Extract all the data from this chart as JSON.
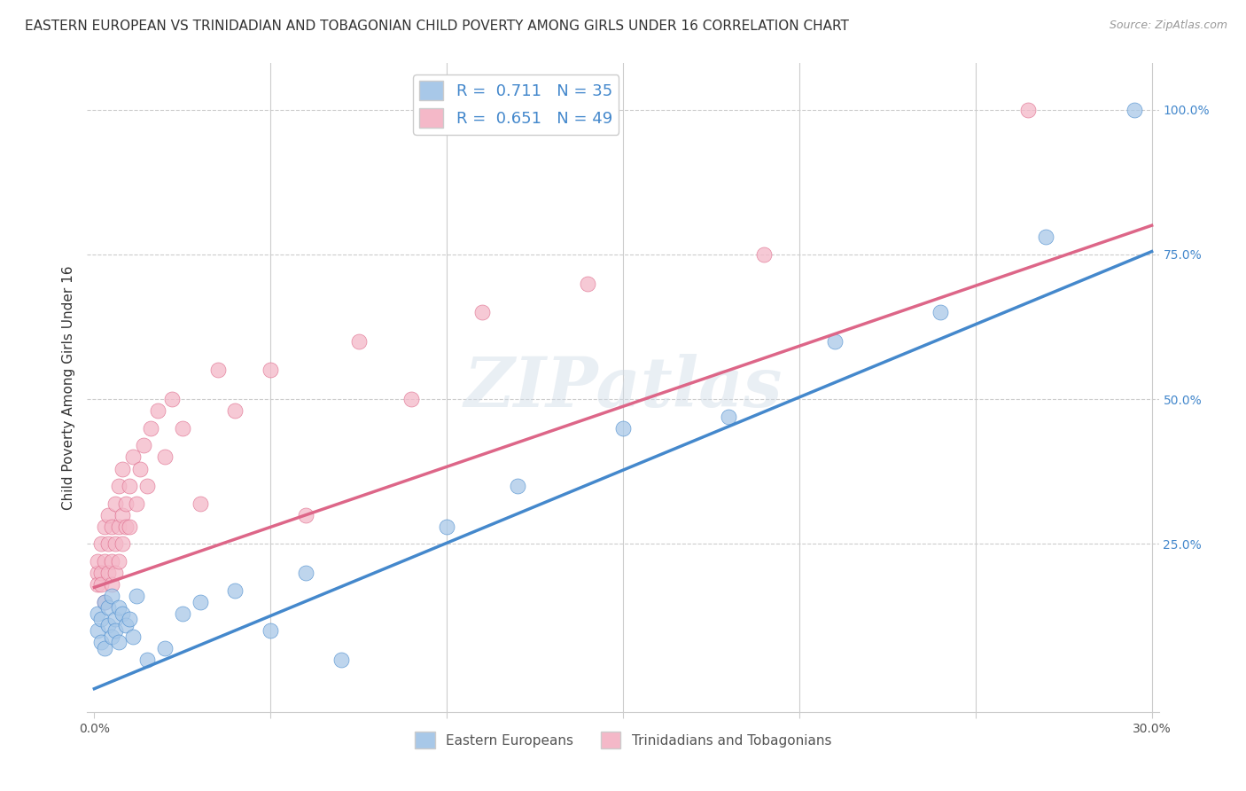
{
  "title": "EASTERN EUROPEAN VS TRINIDADIAN AND TOBAGONIAN CHILD POVERTY AMONG GIRLS UNDER 16 CORRELATION CHART",
  "source": "Source: ZipAtlas.com",
  "ylabel": "Child Poverty Among Girls Under 16",
  "xlim": [
    -0.002,
    0.302
  ],
  "ylim": [
    -0.04,
    1.08
  ],
  "y_ticks_right": [
    0.25,
    0.5,
    0.75,
    1.0
  ],
  "y_tick_labels_right": [
    "25.0%",
    "50.0%",
    "75.0%",
    "100.0%"
  ],
  "blue_R": 0.711,
  "blue_N": 35,
  "pink_R": 0.651,
  "pink_N": 49,
  "blue_color": "#a8c8e8",
  "pink_color": "#f4b8c8",
  "blue_line_color": "#4488cc",
  "pink_line_color": "#dd6688",
  "watermark": "ZIPatlas",
  "blue_scatter_x": [
    0.001,
    0.001,
    0.002,
    0.002,
    0.003,
    0.003,
    0.004,
    0.004,
    0.005,
    0.005,
    0.006,
    0.006,
    0.007,
    0.007,
    0.008,
    0.009,
    0.01,
    0.011,
    0.012,
    0.015,
    0.02,
    0.025,
    0.03,
    0.04,
    0.05,
    0.06,
    0.07,
    0.1,
    0.12,
    0.15,
    0.18,
    0.21,
    0.24,
    0.27,
    0.295
  ],
  "blue_scatter_y": [
    0.13,
    0.1,
    0.12,
    0.08,
    0.15,
    0.07,
    0.11,
    0.14,
    0.09,
    0.16,
    0.12,
    0.1,
    0.14,
    0.08,
    0.13,
    0.11,
    0.12,
    0.09,
    0.16,
    0.05,
    0.07,
    0.13,
    0.15,
    0.17,
    0.1,
    0.2,
    0.05,
    0.28,
    0.35,
    0.45,
    0.47,
    0.6,
    0.65,
    0.78,
    1.0
  ],
  "pink_scatter_x": [
    0.001,
    0.001,
    0.001,
    0.002,
    0.002,
    0.002,
    0.003,
    0.003,
    0.003,
    0.004,
    0.004,
    0.004,
    0.005,
    0.005,
    0.005,
    0.006,
    0.006,
    0.006,
    0.007,
    0.007,
    0.007,
    0.008,
    0.008,
    0.008,
    0.009,
    0.009,
    0.01,
    0.01,
    0.011,
    0.012,
    0.013,
    0.014,
    0.015,
    0.016,
    0.018,
    0.02,
    0.022,
    0.025,
    0.03,
    0.035,
    0.04,
    0.05,
    0.06,
    0.075,
    0.09,
    0.11,
    0.14,
    0.19,
    0.265
  ],
  "pink_scatter_y": [
    0.2,
    0.18,
    0.22,
    0.25,
    0.2,
    0.18,
    0.28,
    0.22,
    0.15,
    0.3,
    0.25,
    0.2,
    0.28,
    0.22,
    0.18,
    0.32,
    0.25,
    0.2,
    0.35,
    0.28,
    0.22,
    0.38,
    0.3,
    0.25,
    0.32,
    0.28,
    0.35,
    0.28,
    0.4,
    0.32,
    0.38,
    0.42,
    0.35,
    0.45,
    0.48,
    0.4,
    0.5,
    0.45,
    0.32,
    0.55,
    0.48,
    0.55,
    0.3,
    0.6,
    0.5,
    0.65,
    0.7,
    0.75,
    1.0
  ],
  "blue_line_x0": 0.0,
  "blue_line_y0": 0.0,
  "blue_line_x1": 0.3,
  "blue_line_y1": 0.755,
  "pink_line_x0": 0.0,
  "pink_line_y0": 0.175,
  "pink_line_x1": 0.3,
  "pink_line_y1": 0.8,
  "title_fontsize": 11,
  "axis_label_fontsize": 11,
  "tick_fontsize": 10,
  "background_color": "#ffffff",
  "grid_color": "#cccccc"
}
